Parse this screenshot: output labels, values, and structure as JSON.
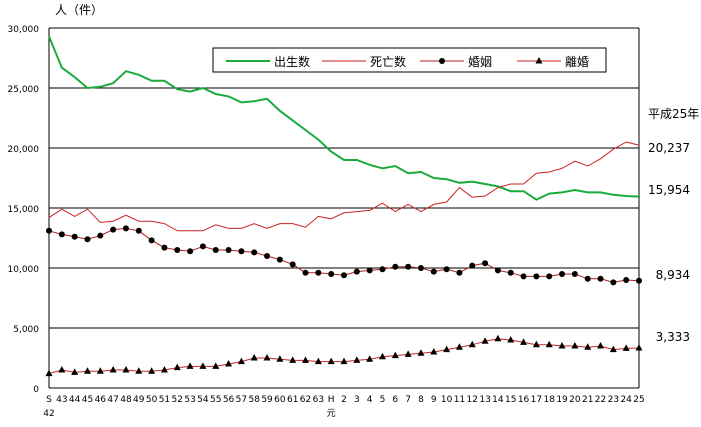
{
  "chart_data": {
    "type": "line",
    "ylabel": "人（件）",
    "ylim": [
      0,
      30000
    ],
    "yticks": [
      0,
      5000,
      10000,
      15000,
      20000,
      25000,
      30000
    ],
    "ytick_labels": [
      "0",
      "5,000",
      "10,000",
      "15,000",
      "20,000",
      "25,000",
      "30,000"
    ],
    "grid": true,
    "legend": "top-center",
    "x": [
      "S42",
      "43",
      "44",
      "45",
      "46",
      "47",
      "48",
      "49",
      "50",
      "51",
      "52",
      "53",
      "54",
      "55",
      "56",
      "57",
      "58",
      "59",
      "60",
      "61",
      "62",
      "63",
      "H元",
      "2",
      "3",
      "4",
      "5",
      "6",
      "7",
      "8",
      "9",
      "10",
      "11",
      "12",
      "13",
      "14",
      "15",
      "16",
      "17",
      "18",
      "19",
      "20",
      "21",
      "22",
      "23",
      "24",
      "25"
    ],
    "x_tick_labels": [
      "S",
      "43",
      "44",
      "45",
      "46",
      "47",
      "48",
      "49",
      "50",
      "51",
      "52",
      "53",
      "54",
      "55",
      "56",
      "57",
      "58",
      "59",
      "60",
      "61",
      "62",
      "63",
      "H",
      "2",
      "3",
      "4",
      "5",
      "6",
      "7",
      "8",
      "9",
      "10",
      "11",
      "12",
      "13",
      "14",
      "15",
      "16",
      "17",
      "18",
      "19",
      "20",
      "21",
      "22",
      "23",
      "24",
      "25"
    ],
    "x_sub_labels": {
      "0": "42",
      "22": "元"
    },
    "annotation_header": "平成25年",
    "series": [
      {
        "name": "出生数",
        "color": "#1aab3c",
        "marker": "none",
        "end_label": "15,954",
        "values": [
          29300,
          26700,
          25900,
          25000,
          25100,
          25400,
          26400,
          26100,
          25600,
          25600,
          24900,
          24700,
          25000,
          24500,
          24300,
          23800,
          23900,
          24100,
          23100,
          22300,
          21500,
          20700,
          19700,
          19000,
          19000,
          18600,
          18300,
          18500,
          17900,
          18000,
          17500,
          17400,
          17100,
          17200,
          17000,
          16800,
          16400,
          16400,
          15700,
          16200,
          16300,
          16500,
          16300,
          16300,
          16100,
          16000,
          15954
        ]
      },
      {
        "name": "死亡数",
        "color": "#cc2222",
        "marker": "none",
        "end_label": "20,237",
        "values": [
          14200,
          14900,
          14300,
          14900,
          13800,
          13900,
          14400,
          13900,
          13900,
          13700,
          13100,
          13100,
          13100,
          13600,
          13300,
          13300,
          13700,
          13300,
          13700,
          13700,
          13400,
          14300,
          14100,
          14600,
          14700,
          14800,
          15400,
          14700,
          15300,
          14700,
          15300,
          15500,
          16700,
          15900,
          16000,
          16700,
          17000,
          17000,
          17900,
          18000,
          18300,
          18900,
          18500,
          19100,
          19900,
          20500,
          20237
        ]
      },
      {
        "name": "婚姻",
        "color": "#b52020",
        "marker": "circle",
        "end_label": "8,934",
        "values": [
          13100,
          12800,
          12600,
          12400,
          12700,
          13200,
          13300,
          13100,
          12300,
          11700,
          11500,
          11400,
          11800,
          11500,
          11500,
          11400,
          11300,
          11000,
          10700,
          10300,
          9600,
          9600,
          9500,
          9400,
          9700,
          9800,
          9900,
          10100,
          10100,
          10000,
          9700,
          9900,
          9600,
          10200,
          10400,
          9800,
          9600,
          9300,
          9300,
          9300,
          9500,
          9500,
          9100,
          9100,
          8800,
          9000,
          8934
        ]
      },
      {
        "name": "離婚",
        "color": "#cc2222",
        "marker": "triangle",
        "end_label": "3,333",
        "values": [
          1200,
          1500,
          1300,
          1400,
          1400,
          1500,
          1500,
          1400,
          1400,
          1500,
          1700,
          1800,
          1800,
          1800,
          2000,
          2200,
          2500,
          2500,
          2400,
          2300,
          2300,
          2200,
          2200,
          2200,
          2300,
          2400,
          2600,
          2700,
          2800,
          2900,
          3000,
          3200,
          3400,
          3600,
          3900,
          4100,
          4000,
          3800,
          3600,
          3600,
          3500,
          3500,
          3400,
          3500,
          3200,
          3300,
          3333
        ]
      }
    ]
  }
}
